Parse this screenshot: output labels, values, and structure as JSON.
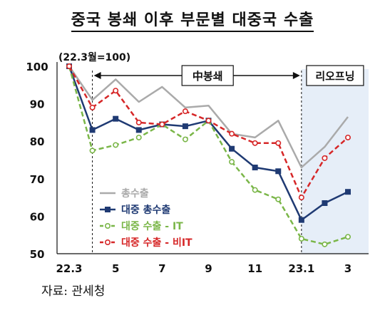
{
  "chart_data": {
    "type": "line",
    "title": "중국 봉쇄 이후 부문별 대중국 수출",
    "unit_label": "(22.3월=100)",
    "x_tick_labels": [
      "22.3",
      "5",
      "7",
      "9",
      "11",
      "23.1",
      "3"
    ],
    "x": [
      "22.3",
      "22.4",
      "22.5",
      "22.6",
      "22.7",
      "22.8",
      "22.9",
      "22.10",
      "22.11",
      "22.12",
      "23.1",
      "23.2",
      "23.3"
    ],
    "ylim": [
      50,
      100
    ],
    "y_ticks": [
      100,
      90,
      80,
      70,
      60,
      50
    ],
    "grid": false,
    "series": [
      {
        "name": "총수출",
        "color": "#aaaaaa",
        "style": "solid",
        "marker": "none",
        "values": [
          100,
          91,
          96.5,
          90.5,
          94.5,
          89,
          89.5,
          82,
          81,
          85.5,
          73,
          78.5,
          86.5
        ]
      },
      {
        "name": "대중 총수출",
        "color": "#1f3a73",
        "style": "solid",
        "marker": "square",
        "values": [
          100,
          83,
          86,
          83,
          84.5,
          84,
          85.5,
          78,
          73,
          72,
          59,
          63.5,
          66.5
        ]
      },
      {
        "name": "대중 수출 - IT",
        "color": "#7ab648",
        "style": "dashed",
        "marker": "circle-open",
        "values": [
          100,
          77.5,
          79,
          81,
          84.5,
          80.5,
          85.5,
          74.5,
          67,
          64.5,
          54,
          52.5,
          54.5
        ]
      },
      {
        "name": "대중 수출 - 비IT",
        "color": "#d62728",
        "style": "dashed",
        "marker": "circle-open",
        "values": [
          100,
          89,
          93.5,
          85,
          84.5,
          88,
          85.5,
          82,
          79.5,
          79.5,
          65,
          75.5,
          81
        ]
      }
    ],
    "annotations": [
      {
        "label": "中봉쇄",
        "from": "22.4",
        "to": "23.1"
      },
      {
        "label": "리오프닝",
        "from": "23.1",
        "to": "23.3"
      }
    ],
    "legend_position": "bottom-left"
  },
  "source_text": "자료: 관세청"
}
